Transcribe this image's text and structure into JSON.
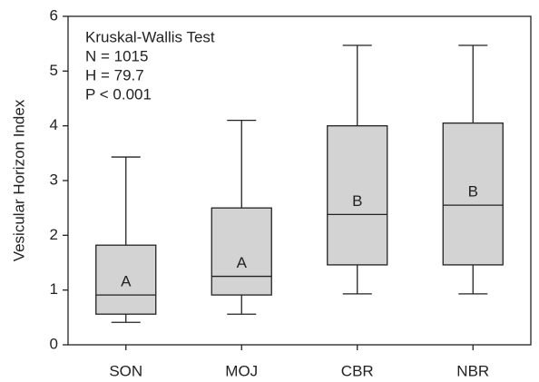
{
  "chart_data": {
    "type": "box",
    "ylabel": "Vesicular Horizon Index",
    "categories": [
      "SON",
      "MOJ",
      "CBR",
      "NBR"
    ],
    "whisker_low": [
      0.41,
      0.56,
      0.93,
      0.93
    ],
    "q1": [
      0.56,
      0.91,
      1.46,
      1.46
    ],
    "median": [
      0.91,
      1.25,
      2.38,
      2.55
    ],
    "q3": [
      1.82,
      2.5,
      4.0,
      4.05
    ],
    "whisker_high": [
      3.43,
      4.1,
      5.47,
      5.47
    ],
    "group_labels": [
      "A",
      "A",
      "B",
      "B"
    ],
    "annotations": [
      "Kruskal-Wallis Test",
      "N = 1015",
      "H = 79.7",
      "P < 0.001"
    ],
    "color": "#d3d3d3",
    "ylim": [
      0,
      6
    ],
    "yticks": [
      0,
      1,
      2,
      3,
      4,
      5,
      6
    ],
    "grid": false
  }
}
